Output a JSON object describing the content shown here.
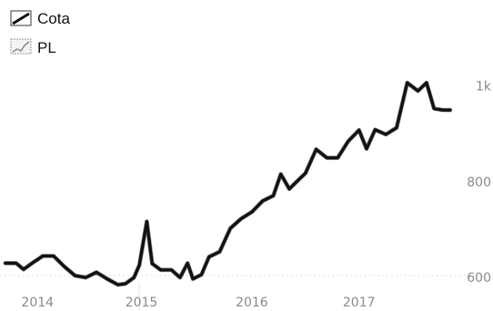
{
  "chart_data": {
    "type": "line",
    "title": "",
    "xlabel": "",
    "ylabel": "",
    "legend_position": "top-left",
    "grid": false,
    "x_ticks": [
      "2014",
      "2015",
      "2016",
      "2017"
    ],
    "x_tick_values": [
      2014.05,
      2015.02,
      2016.05,
      2017.05
    ],
    "y_axis_side": "right",
    "y_ticks": [
      {
        "value": 600,
        "label": "600"
      },
      {
        "value": 800,
        "label": "800"
      },
      {
        "value": 1000,
        "label": "1k"
      }
    ],
    "xlim": [
      2013.7,
      2018.3
    ],
    "ylim": [
      530,
      1180
    ],
    "x": [
      2013.75,
      2013.85,
      2013.92,
      2014.0,
      2014.1,
      2014.2,
      2014.3,
      2014.4,
      2014.5,
      2014.6,
      2014.7,
      2014.8,
      2014.87,
      2014.95,
      2015.0,
      2015.07,
      2015.12,
      2015.2,
      2015.3,
      2015.38,
      2015.45,
      2015.5,
      2015.58,
      2015.65,
      2015.75,
      2015.85,
      2015.95,
      2016.05,
      2016.15,
      2016.25,
      2016.32,
      2016.4,
      2016.48,
      2016.55,
      2016.65,
      2016.75,
      2016.85,
      2016.95,
      2017.05,
      2017.12,
      2017.2,
      2017.3,
      2017.4,
      2017.5,
      2017.6,
      2017.68,
      2017.75,
      2017.83,
      2017.9
    ],
    "series": [
      {
        "name": "Cota",
        "color": "#111111",
        "values": [
          630,
          630,
          617,
          630,
          645,
          645,
          623,
          604,
          600,
          611,
          597,
          585,
          587,
          600,
          626,
          717,
          629,
          616,
          616,
          600,
          630,
          597,
          606,
          643,
          654,
          703,
          723,
          737,
          760,
          771,
          816,
          785,
          803,
          818,
          868,
          850,
          850,
          885,
          908,
          869,
          909,
          899,
          913,
          1007,
          990,
          1007,
          953,
          950,
          950
        ]
      },
      {
        "name": "PL",
        "color": "#7a7a7a",
        "values": [
          630,
          630,
          617,
          630,
          645,
          645,
          623,
          604,
          600,
          611,
          597,
          585,
          587,
          600,
          626,
          717,
          629,
          616,
          616,
          600,
          630,
          597,
          606,
          643,
          654,
          703,
          723,
          737,
          760,
          771,
          816,
          785,
          803,
          818,
          868,
          850,
          850,
          885,
          908,
          869,
          909,
          899,
          913,
          1007,
          990,
          1007,
          953,
          950,
          950
        ]
      }
    ]
  }
}
